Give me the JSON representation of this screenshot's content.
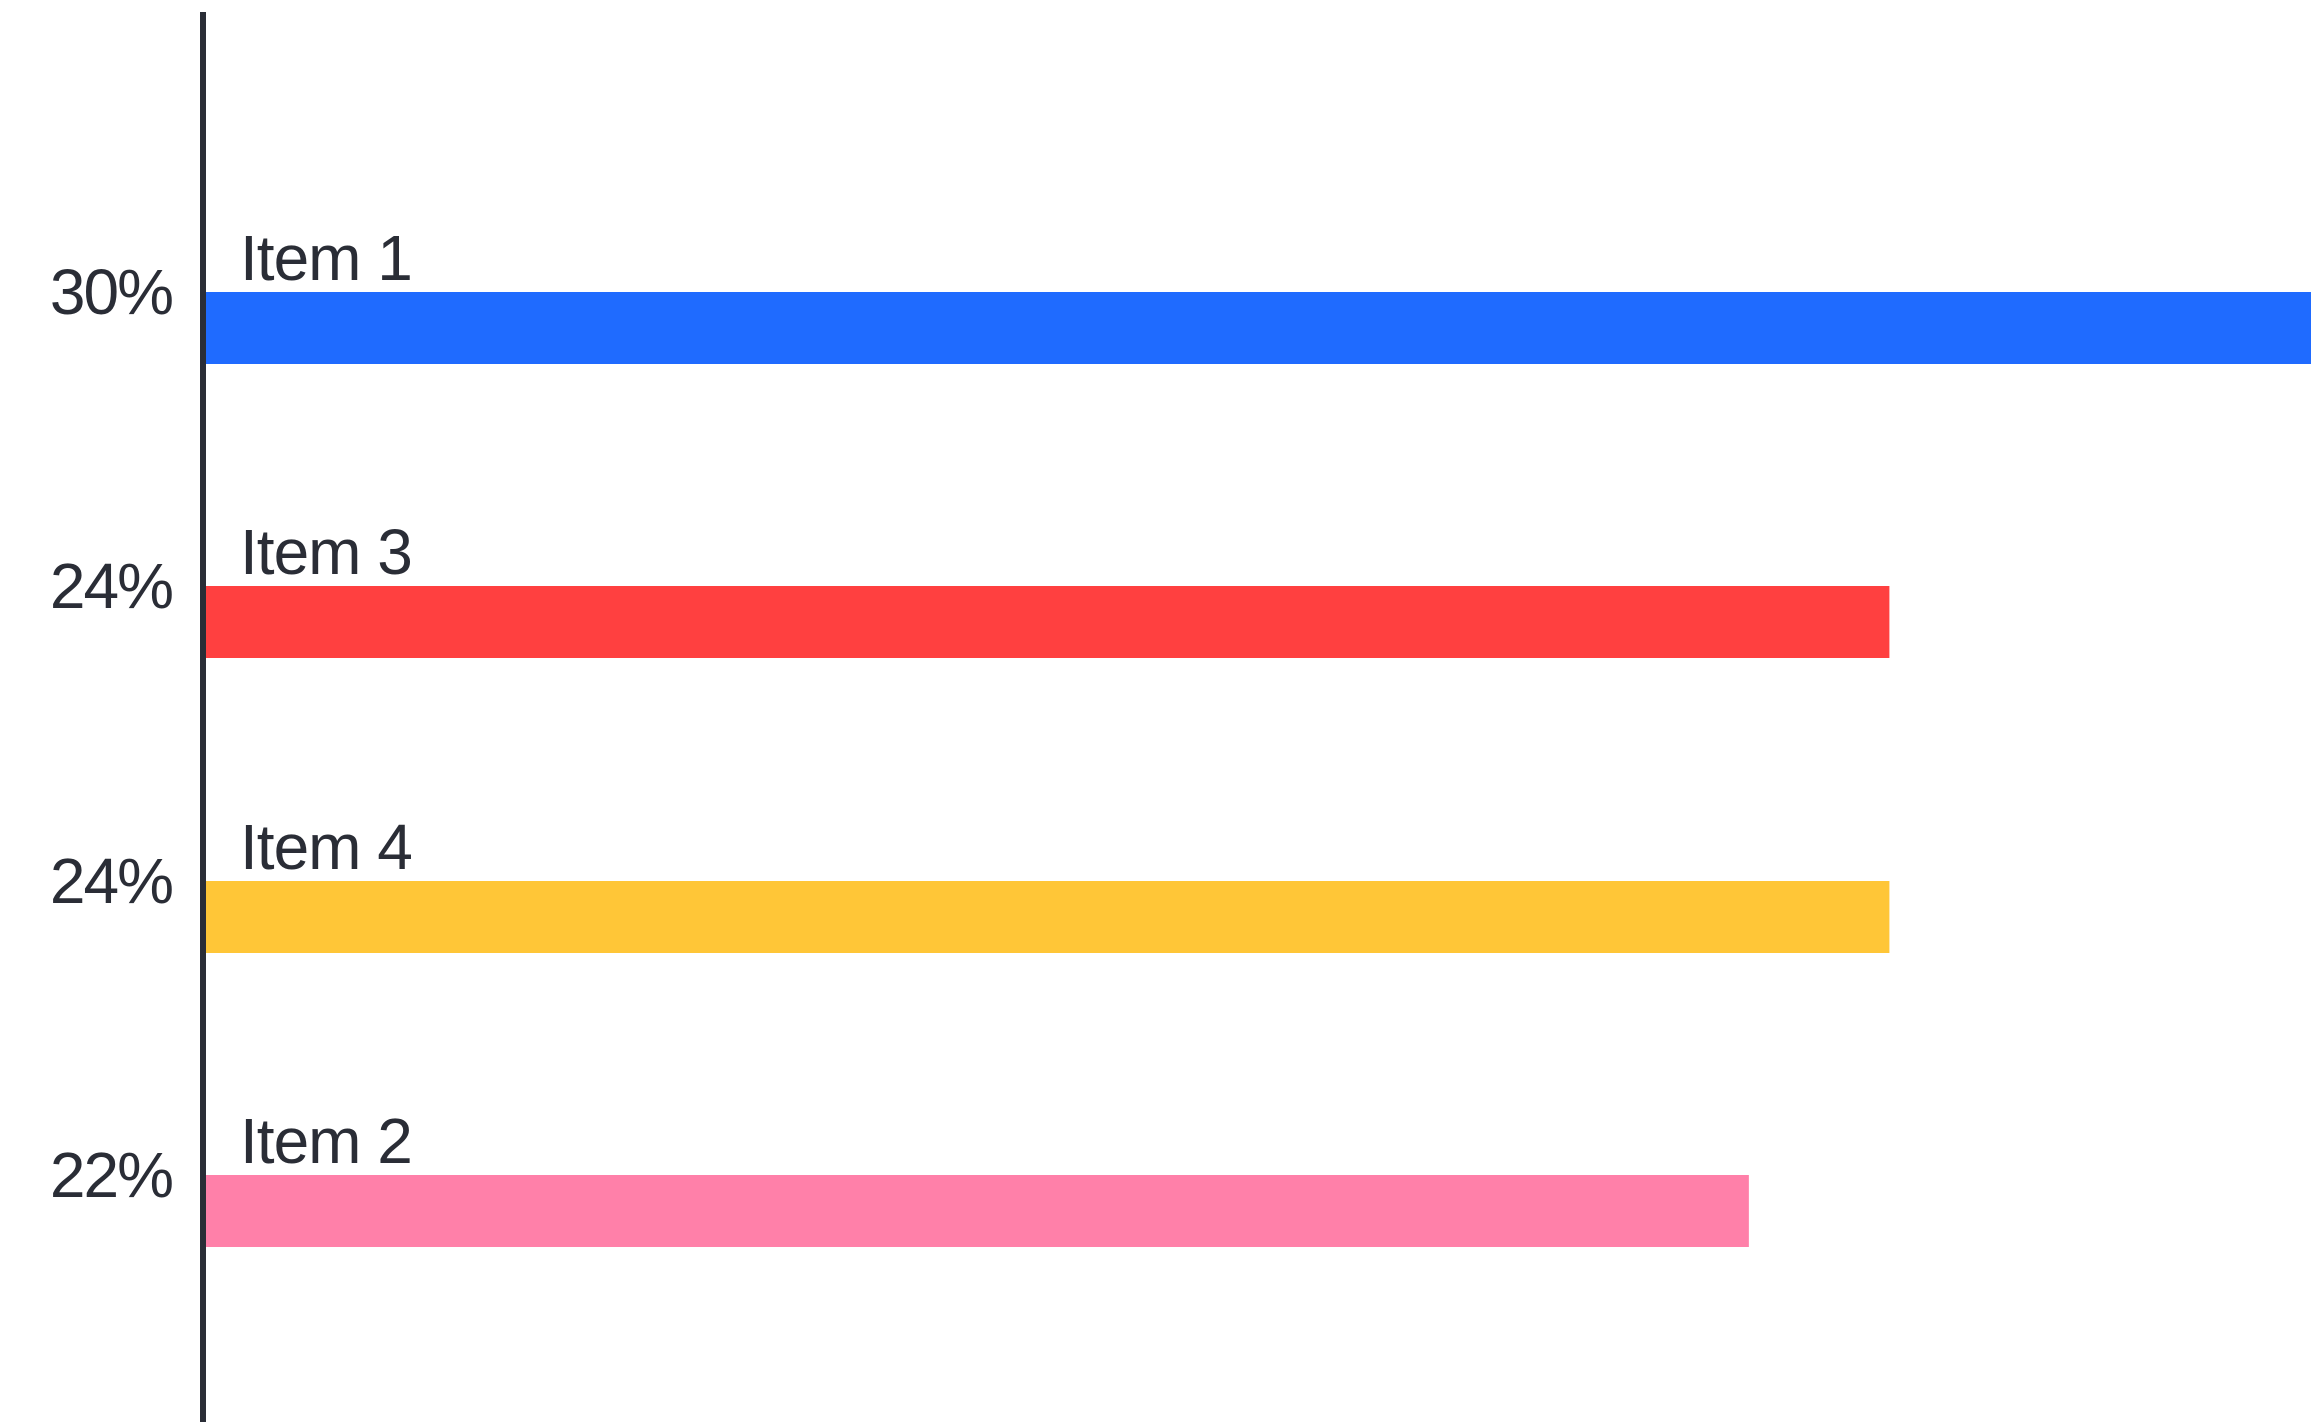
{
  "chart_data": {
    "type": "bar",
    "orientation": "horizontal",
    "categories": [
      "Item 1",
      "Item 3",
      "Item 4",
      "Item 2"
    ],
    "values": [
      30,
      24,
      24,
      22
    ],
    "value_labels": [
      "30%",
      "24%",
      "24%",
      "22%"
    ],
    "colors": [
      "#1f6bff",
      "#ff4040",
      "#ffc637",
      "#ff80a9"
    ],
    "unit": "%",
    "xlim": [
      0,
      30
    ],
    "grid": false,
    "legend": "none",
    "title": "",
    "xlabel": "",
    "ylabel": ""
  },
  "style": {
    "axis_color": "#2a2d36",
    "text_color": "#2a2d36",
    "background": "#ffffff"
  }
}
